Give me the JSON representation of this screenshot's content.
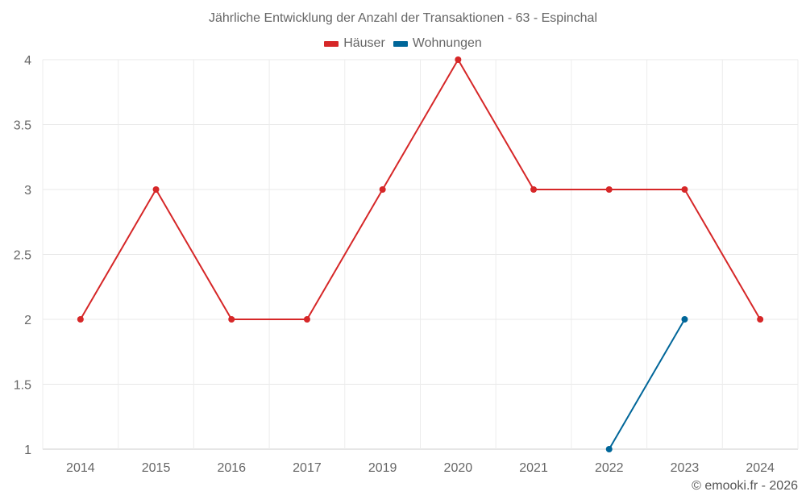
{
  "chart_data": {
    "type": "line",
    "title": "Jährliche Entwicklung der Anzahl der Transaktionen - 63 - Espinchal",
    "categories": [
      "2014",
      "2015",
      "2016",
      "2017",
      "2019",
      "2020",
      "2021",
      "2022",
      "2023",
      "2024"
    ],
    "series": [
      {
        "name": "Häuser",
        "color": "#d62728",
        "values": [
          2,
          3,
          2,
          2,
          3,
          4,
          3,
          3,
          3,
          2
        ]
      },
      {
        "name": "Wohnungen",
        "color": "#006699",
        "values": [
          null,
          null,
          null,
          null,
          null,
          null,
          null,
          1,
          2,
          null
        ]
      }
    ],
    "xlabel": "",
    "ylabel": "",
    "ylim": [
      1,
      4
    ],
    "yticks": [
      "1",
      "1.5",
      "2",
      "2.5",
      "3",
      "3.5",
      "4"
    ],
    "grid": true,
    "legend_position": "top"
  },
  "legend": [
    {
      "label": "Häuser",
      "color": "#d62728"
    },
    {
      "label": "Wohnungen",
      "color": "#006699"
    }
  ],
  "credit": "© emooki.fr - 2026"
}
